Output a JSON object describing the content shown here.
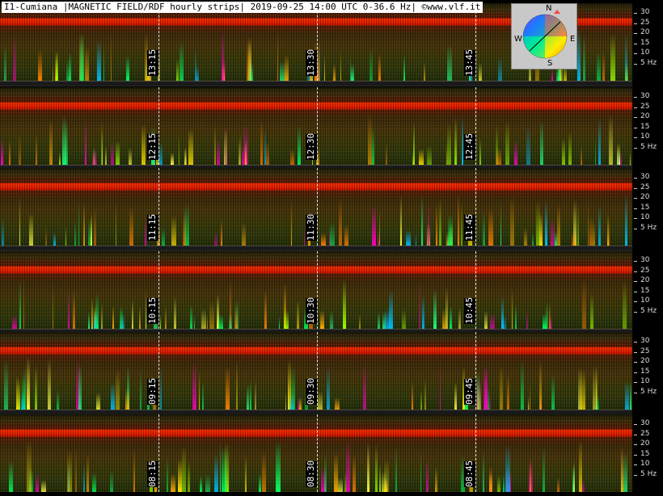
{
  "header": {
    "title": "I1-Cumiana |MAGNETIC FIELD/RDF hourly strips| 2019-09-25 14:00 UTC 0-36.6 Hz| ©www.vlf.it"
  },
  "compass": {
    "north": "N",
    "south": "S",
    "east": "E",
    "west": "W"
  },
  "axis": {
    "ticks": [
      "30",
      "25",
      "20",
      "15",
      "10",
      "5 Hz"
    ]
  },
  "strips": [
    {
      "labels": [
        "13:15",
        "13:30",
        "13:45"
      ]
    },
    {
      "labels": [
        "12:15",
        "12:30",
        "12:45"
      ]
    },
    {
      "labels": [
        "11:15",
        "11:30",
        "11:45"
      ]
    },
    {
      "labels": [
        "10:15",
        "10:30",
        "10:45"
      ]
    },
    {
      "labels": [
        "09:15",
        "09:30",
        "09:45"
      ]
    },
    {
      "labels": [
        "08:15",
        "08:30",
        "08:45"
      ]
    }
  ],
  "colors": {
    "band": "#ff2a00",
    "background": "#000000",
    "divider": "#e8e8e8"
  }
}
